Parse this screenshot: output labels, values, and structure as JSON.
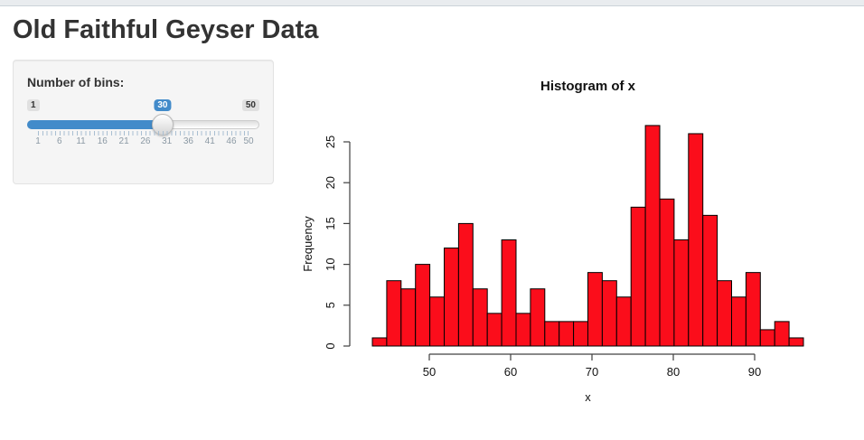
{
  "page": {
    "title": "Old Faithful Geyser Data"
  },
  "sidebar": {
    "bins_label": "Number of bins:",
    "slider": {
      "min": 1,
      "max": 50,
      "value": 30,
      "min_label": "1",
      "max_label": "50",
      "value_label": "30",
      "grid_labels": [
        "1",
        "6",
        "11",
        "16",
        "21",
        "26",
        "31",
        "36",
        "41",
        "46",
        "50"
      ],
      "accent_color": "#428bca"
    }
  },
  "chart_data": {
    "type": "bar",
    "subtype": "histogram",
    "title": "Histogram of x",
    "xlabel": "x",
    "ylabel": "Frequency",
    "bin_start": 43,
    "bin_end": 96,
    "bin_count": 30,
    "counts": [
      1,
      8,
      7,
      10,
      6,
      12,
      15,
      7,
      4,
      13,
      4,
      7,
      3,
      3,
      3,
      9,
      8,
      6,
      17,
      27,
      18,
      13,
      26,
      16,
      8,
      6,
      9,
      2,
      3,
      1
    ],
    "x_ticks": [
      50,
      60,
      70,
      80,
      90
    ],
    "y_ticks": [
      0,
      5,
      10,
      15,
      20,
      25
    ],
    "ylim": [
      0,
      27
    ],
    "grid": false,
    "legend": "none",
    "bar_color": "#fb0d1b",
    "bar_border_color": "#000000",
    "axis_color": "#404040",
    "text_color": "#111111"
  }
}
